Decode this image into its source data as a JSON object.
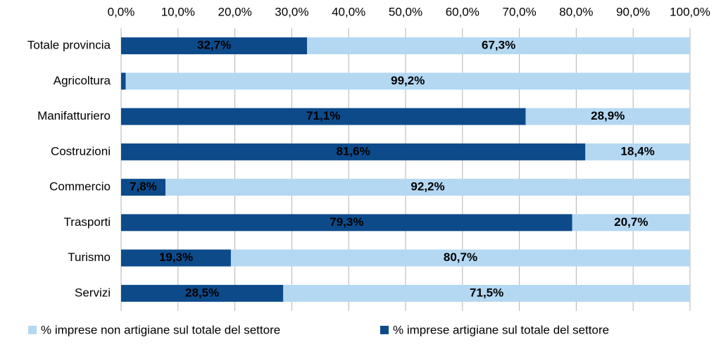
{
  "chart_data": {
    "type": "stacked_barh",
    "categories": [
      "Totale provincia",
      "Agricoltura",
      "Manifatturiero",
      "Costruzioni",
      "Commercio",
      "Trasporti",
      "Turismo",
      "Servizi"
    ],
    "series": [
      {
        "name": "% imprese artigiane sul totale del settore",
        "color": "#0d4a8a",
        "values": [
          32.7,
          0.8,
          71.1,
          81.6,
          7.8,
          79.3,
          19.3,
          28.5
        ],
        "value_labels": [
          "32,7%",
          null,
          "71,1%",
          "81,6%",
          "7,8%",
          "79,3%",
          "19,3%",
          "28,5%"
        ]
      },
      {
        "name": "% imprese non artigiane sul totale del settore",
        "color": "#b4d8f2",
        "values": [
          67.3,
          99.2,
          28.9,
          18.4,
          92.2,
          20.7,
          80.7,
          71.5
        ],
        "value_labels": [
          "67,3%",
          "99,2%",
          "28,9%",
          "18,4%",
          "92,2%",
          "20,7%",
          "80,7%",
          "71,5%"
        ]
      }
    ],
    "xlim": [
      0,
      100
    ],
    "xticks": [
      {
        "value": 0,
        "label": "0,0%"
      },
      {
        "value": 10,
        "label": "10,0%"
      },
      {
        "value": 20,
        "label": "20,0%"
      },
      {
        "value": 30,
        "label": "30,0%"
      },
      {
        "value": 40,
        "label": "40,0%"
      },
      {
        "value": 50,
        "label": "50,0%"
      },
      {
        "value": 60,
        "label": "60,0%"
      },
      {
        "value": 70,
        "label": "70,0%"
      },
      {
        "value": 80,
        "label": "80,0%"
      },
      {
        "value": 90,
        "label": "90,0%"
      },
      {
        "value": 100,
        "label": "100,0%"
      }
    ],
    "grid": true,
    "legend": "bottom"
  }
}
